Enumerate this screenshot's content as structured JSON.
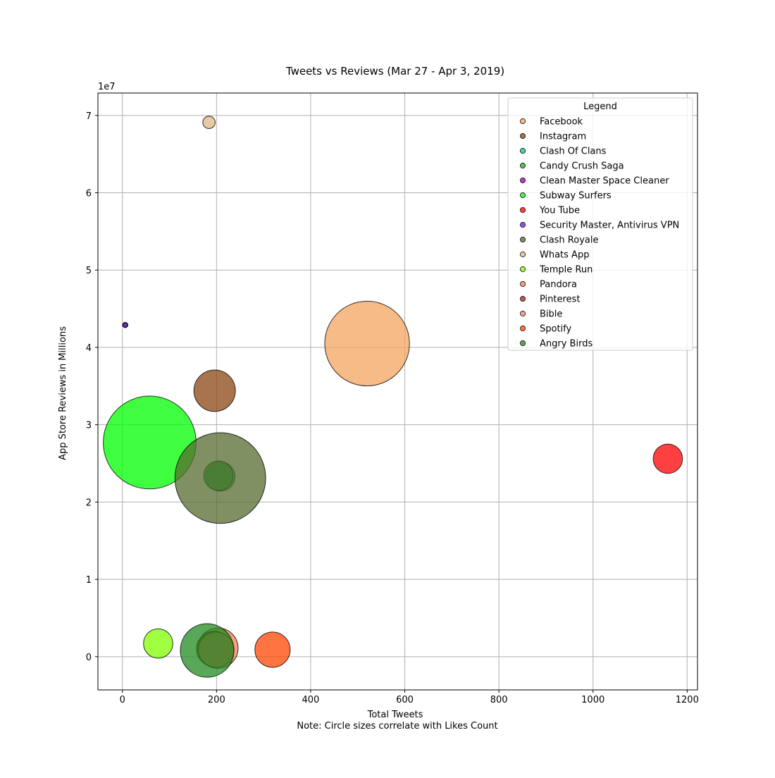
{
  "chart_data": {
    "type": "scatter",
    "title": "Tweets vs Reviews (Mar 27 - Apr 3, 2019)",
    "xlabel": "Total Tweets",
    "xlabel_note": "Note: Circle sizes correlate with Likes Count",
    "ylabel": "App Store Reviews in Millions",
    "y_offset_label": "1e7",
    "xlim": [
      -52,
      1222
    ],
    "ylim": [
      -4300000,
      72900000
    ],
    "x_ticks": [
      0,
      200,
      400,
      600,
      800,
      1000,
      1200
    ],
    "x_tick_labels": [
      "0",
      "200",
      "400",
      "600",
      "800",
      "1000",
      "1200"
    ],
    "y_ticks": [
      0,
      10000000,
      20000000,
      30000000,
      40000000,
      50000000,
      60000000,
      70000000
    ],
    "y_tick_labels": [
      "0",
      "1",
      "2",
      "3",
      "4",
      "5",
      "6",
      "7"
    ],
    "grid": true,
    "legend": {
      "title": "Legend",
      "position": "upper right"
    },
    "series": [
      {
        "name": "Facebook",
        "color": "#f4a460",
        "x": 520,
        "y": 40500000,
        "size": 7500
      },
      {
        "name": "Instagram",
        "color": "#8b4513",
        "x": 196,
        "y": 34400000,
        "size": 1800
      },
      {
        "name": "Clash Of Clans",
        "color": "#00cc88",
        "x": 208,
        "y": 23300000,
        "size": 900
      },
      {
        "name": "Candy Crush Saga",
        "color": "#22aa22",
        "x": 204,
        "y": 23400000,
        "size": 900
      },
      {
        "name": "Clean Master Space Cleaner",
        "color": "#9900aa",
        "x": 6,
        "y": 42900000,
        "size": 30
      },
      {
        "name": "Subway Surfers",
        "color": "#00ff00",
        "x": 58,
        "y": 27700000,
        "size": 9000
      },
      {
        "name": "You Tube",
        "color": "#ff0000",
        "x": 1159,
        "y": 25600000,
        "size": 900
      },
      {
        "name": "Security Master, Antivirus VPN",
        "color": "#6622cc",
        "x": 6,
        "y": 42900000,
        "size": 20
      },
      {
        "name": "Clash Royale",
        "color": "#556b2f",
        "x": 208,
        "y": 23100000,
        "size": 8600
      },
      {
        "name": "Whats App",
        "color": "#deb887",
        "x": 184,
        "y": 69100000,
        "size": 160
      },
      {
        "name": "Temple Run",
        "color": "#7fff00",
        "x": 76,
        "y": 1700000,
        "size": 900
      },
      {
        "name": "Pandora",
        "color": "#f08050",
        "x": 203,
        "y": 1100000,
        "size": 1700
      },
      {
        "name": "Pinterest",
        "color": "#b22222",
        "x": 195,
        "y": 1000000,
        "size": 1300
      },
      {
        "name": "Bible",
        "color": "#fa8072",
        "x": 199,
        "y": 900000,
        "size": 1300
      },
      {
        "name": "Spotify",
        "color": "#ff4500",
        "x": 319,
        "y": 900000,
        "size": 1300
      },
      {
        "name": "Angry Birds",
        "color": "#228b22",
        "x": 180,
        "y": 800000,
        "size": 3000
      }
    ],
    "bubble_alpha": 0.75
  }
}
